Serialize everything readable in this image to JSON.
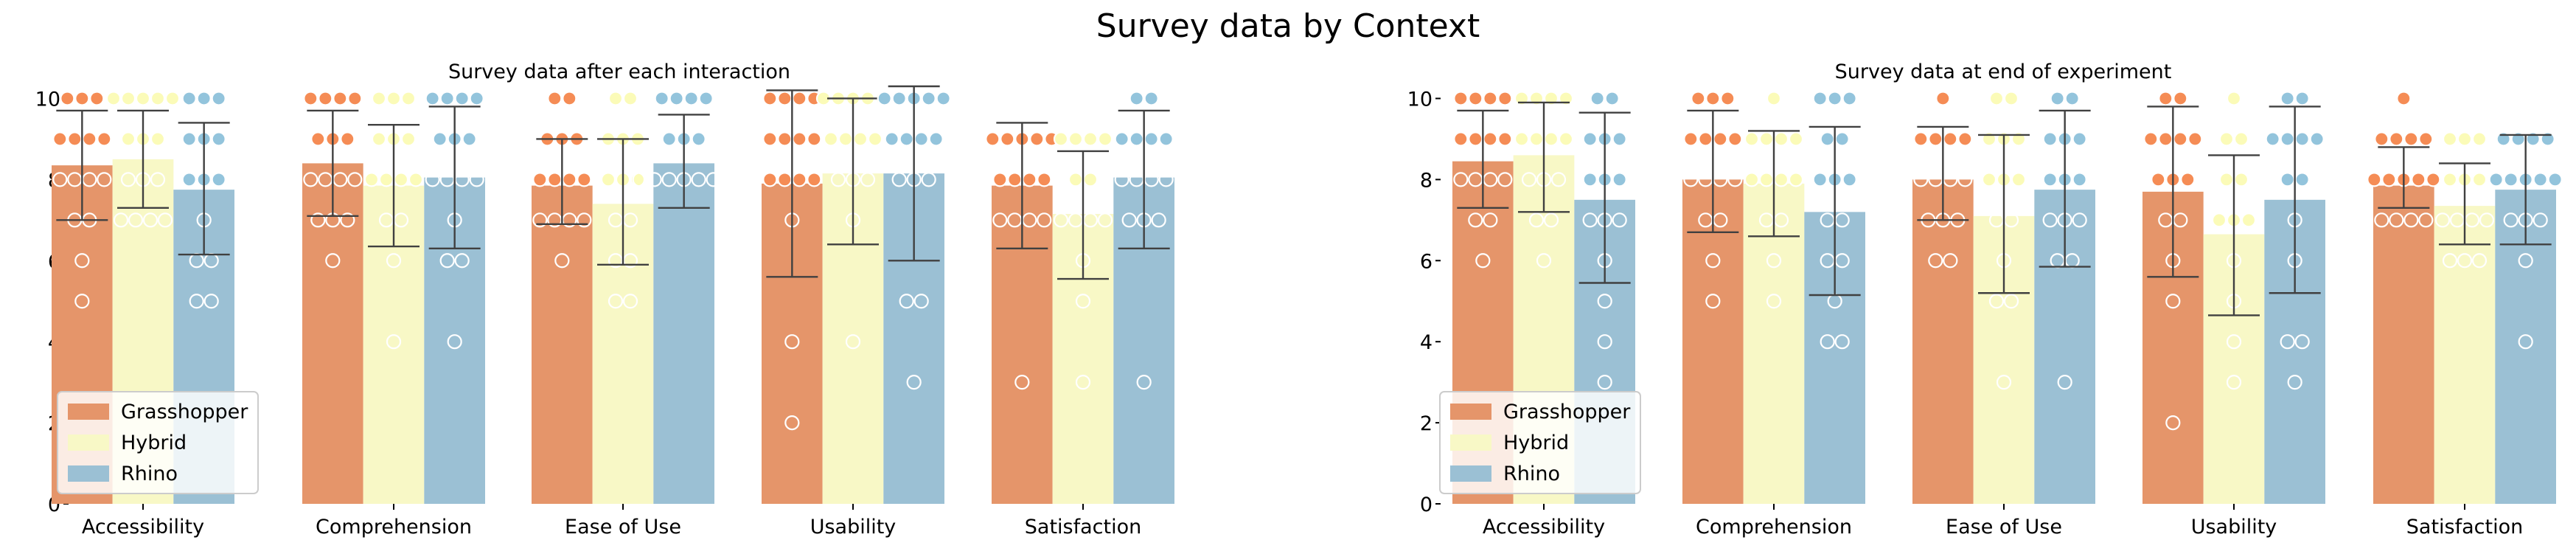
{
  "figure": {
    "title": "Survey data by Context"
  },
  "colors": {
    "Grasshopper": "#e5956a",
    "Hybrid": "#f8f8c6",
    "Rhino": "#9bc0d4",
    "point_Grasshopper": "#f58c55",
    "point_Hybrid": "#fbfbb8",
    "point_Rhino": "#93c4dc",
    "errorbar": "#404040",
    "axis": "#000000"
  },
  "chart_data": [
    {
      "type": "bar",
      "title": "Survey data after each interaction",
      "xlabel": "",
      "ylabel": "",
      "ylim": [
        0,
        10.5
      ],
      "yticks": [
        "0",
        "2",
        "4",
        "6",
        "8",
        "10"
      ],
      "categories": [
        "Accessibility",
        "Comprehension",
        "Ease of Use",
        "Usability",
        "Satisfaction"
      ],
      "legend": {
        "position": "lower-left",
        "entries": [
          "Grasshopper",
          "Hybrid",
          "Rhino"
        ]
      },
      "series": [
        {
          "name": "Grasshopper",
          "values": [
            8.35,
            8.4,
            7.85,
            7.9,
            7.85
          ],
          "err_low": [
            7.0,
            7.1,
            6.9,
            5.6,
            6.3
          ],
          "err_high": [
            9.7,
            9.7,
            9.0,
            10.2,
            9.4
          ]
        },
        {
          "name": "Hybrid",
          "values": [
            8.5,
            7.85,
            7.4,
            8.15,
            7.15
          ],
          "err_low": [
            7.3,
            6.35,
            5.9,
            6.4,
            5.55
          ],
          "err_high": [
            9.7,
            9.35,
            9.0,
            10.0,
            8.7
          ]
        },
        {
          "name": "Rhino",
          "values": [
            7.75,
            8.05,
            8.4,
            8.15,
            8.05
          ],
          "err_low": [
            6.15,
            6.3,
            7.3,
            6.0,
            6.3
          ],
          "err_high": [
            9.4,
            9.8,
            9.6,
            10.3,
            9.7
          ]
        }
      ],
      "points": [
        [
          [
            10,
            10,
            10,
            9,
            9,
            9,
            9,
            8,
            8,
            8,
            8,
            7,
            7,
            6,
            5
          ],
          [
            10,
            10,
            10,
            10,
            10,
            9,
            9,
            9,
            8,
            8,
            8,
            7,
            7,
            7,
            7
          ],
          [
            10,
            10,
            10,
            9,
            9,
            9,
            8,
            8,
            8,
            7,
            6,
            6,
            5,
            5
          ]
        ],
        [
          [
            10,
            10,
            10,
            10,
            9,
            9,
            9,
            8,
            8,
            8,
            8,
            7,
            7,
            7,
            6
          ],
          [
            10,
            10,
            10,
            9,
            9,
            9,
            8,
            8,
            8,
            8,
            7,
            7,
            6,
            4
          ],
          [
            10,
            10,
            10,
            10,
            9,
            9,
            9,
            8,
            8,
            8,
            8,
            7,
            6,
            6,
            4
          ]
        ],
        [
          [
            10,
            10,
            9,
            9,
            9,
            8,
            8,
            8,
            8,
            7,
            7,
            7,
            7,
            6
          ],
          [
            10,
            10,
            9,
            9,
            9,
            8,
            8,
            8,
            7,
            7,
            6,
            6,
            5,
            5
          ],
          [
            10,
            10,
            10,
            10,
            9,
            9,
            9,
            8,
            8,
            8,
            8,
            8,
            8,
            8
          ]
        ],
        [
          [
            10,
            10,
            10,
            10,
            9,
            9,
            9,
            9,
            8,
            8,
            8,
            8,
            7,
            4,
            2
          ],
          [
            10,
            10,
            10,
            10,
            10,
            9,
            9,
            9,
            9,
            8,
            8,
            8,
            7,
            4
          ],
          [
            10,
            10,
            10,
            10,
            10,
            9,
            9,
            9,
            9,
            8,
            8,
            8,
            5,
            5,
            3
          ]
        ],
        [
          [
            9,
            9,
            9,
            9,
            9,
            8,
            8,
            8,
            8,
            7,
            7,
            7,
            7,
            3
          ],
          [
            9,
            9,
            9,
            9,
            8,
            8,
            7,
            7,
            7,
            7,
            6,
            5,
            3
          ],
          [
            10,
            10,
            9,
            9,
            9,
            9,
            8,
            8,
            8,
            8,
            7,
            7,
            7,
            3
          ]
        ]
      ]
    },
    {
      "type": "bar",
      "title": "Survey data at end of experiment",
      "xlabel": "",
      "ylabel": "",
      "ylim": [
        0,
        10.5
      ],
      "yticks": [
        "0",
        "2",
        "4",
        "6",
        "8",
        "10"
      ],
      "categories": [
        "Accessibility",
        "Comprehension",
        "Ease of Use",
        "Usability",
        "Satisfaction"
      ],
      "legend": {
        "position": "lower-left",
        "entries": [
          "Grasshopper",
          "Hybrid",
          "Rhino"
        ]
      },
      "series": [
        {
          "name": "Grasshopper",
          "values": [
            8.45,
            8.0,
            8.0,
            7.7,
            7.85
          ],
          "err_low": [
            7.3,
            6.7,
            7.0,
            5.6,
            7.3
          ],
          "err_high": [
            9.7,
            9.7,
            9.3,
            9.8,
            8.8
          ]
        },
        {
          "name": "Hybrid",
          "values": [
            8.6,
            7.9,
            7.1,
            6.65,
            7.35
          ],
          "err_low": [
            7.2,
            6.6,
            5.2,
            4.65,
            6.4
          ],
          "err_high": [
            9.9,
            9.2,
            9.1,
            8.6,
            8.4
          ]
        },
        {
          "name": "Rhino",
          "values": [
            7.5,
            7.2,
            7.75,
            7.5,
            7.75
          ],
          "err_low": [
            5.45,
            5.15,
            5.85,
            5.2,
            6.4
          ],
          "err_high": [
            9.65,
            9.3,
            9.7,
            9.8,
            9.1
          ]
        }
      ],
      "points": [
        [
          [
            10,
            10,
            10,
            10,
            9,
            9,
            9,
            9,
            8,
            8,
            8,
            8,
            7,
            7,
            6
          ],
          [
            10,
            10,
            10,
            10,
            9,
            9,
            9,
            9,
            8,
            8,
            8,
            7,
            7,
            6
          ],
          [
            10,
            10,
            9,
            9,
            9,
            8,
            8,
            8,
            7,
            7,
            7,
            6,
            5,
            4,
            3
          ]
        ],
        [
          [
            10,
            10,
            10,
            9,
            9,
            9,
            9,
            8,
            8,
            8,
            8,
            7,
            7,
            6,
            5
          ],
          [
            10,
            9,
            9,
            9,
            9,
            8,
            8,
            8,
            8,
            7,
            7,
            6,
            5
          ],
          [
            10,
            10,
            10,
            9,
            9,
            8,
            8,
            8,
            7,
            7,
            6,
            6,
            5,
            4,
            4
          ]
        ],
        [
          [
            10,
            9,
            9,
            9,
            9,
            8,
            8,
            8,
            8,
            7,
            7,
            7,
            6,
            6
          ],
          [
            10,
            10,
            9,
            9,
            9,
            8,
            8,
            8,
            7,
            7,
            6,
            5,
            5,
            3
          ],
          [
            10,
            10,
            9,
            9,
            9,
            8,
            8,
            8,
            7,
            7,
            7,
            6,
            6,
            3
          ]
        ],
        [
          [
            10,
            10,
            9,
            9,
            9,
            9,
            8,
            8,
            8,
            7,
            7,
            6,
            5,
            2
          ],
          [
            10,
            9,
            9,
            8,
            8,
            7,
            7,
            7,
            6,
            5,
            4,
            3
          ],
          [
            10,
            10,
            9,
            9,
            9,
            9,
            8,
            8,
            7,
            6,
            4,
            4,
            3
          ]
        ],
        [
          [
            10,
            9,
            9,
            9,
            9,
            8,
            8,
            8,
            8,
            8,
            7,
            7,
            7,
            7
          ],
          [
            9,
            9,
            9,
            8,
            8,
            8,
            7,
            7,
            7,
            7,
            6,
            6,
            6
          ],
          [
            9,
            9,
            9,
            9,
            8,
            8,
            8,
            8,
            8,
            7,
            7,
            7,
            6,
            4
          ]
        ]
      ]
    }
  ]
}
